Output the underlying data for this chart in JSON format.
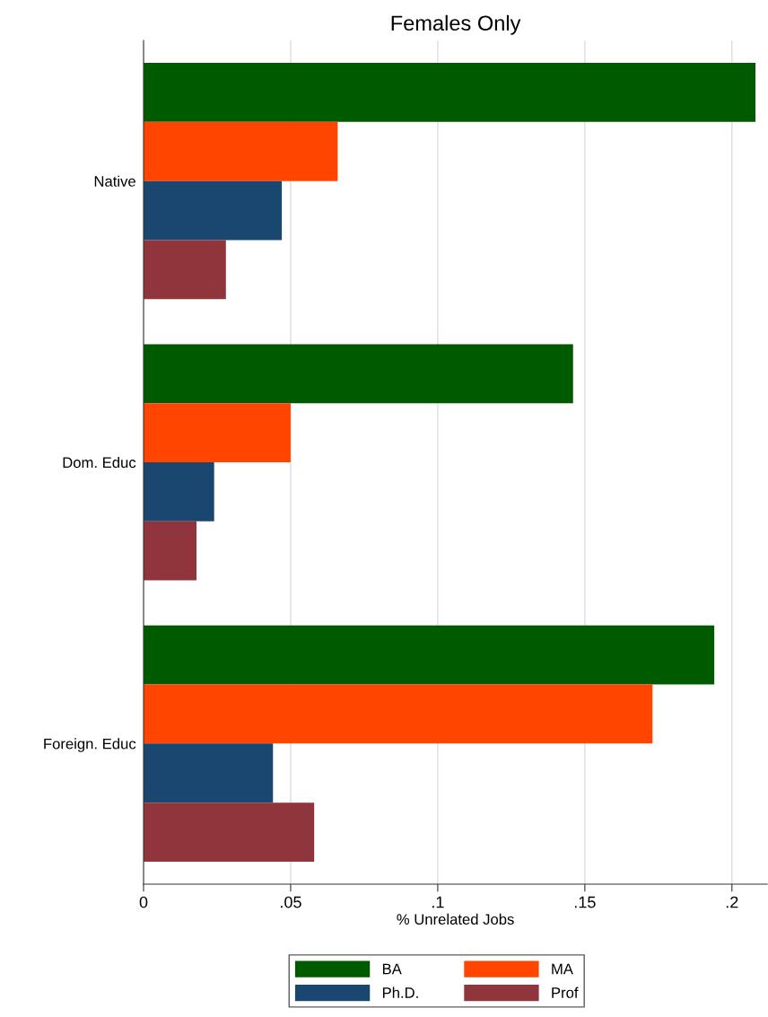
{
  "chart_data": {
    "type": "bar",
    "orientation": "horizontal",
    "title": "Females Only",
    "xlabel": "% Unrelated Jobs",
    "categories": [
      "Native",
      "Dom. Educ",
      "Foreign. Educ"
    ],
    "series": [
      {
        "name": "BA",
        "color": "#005a00",
        "values": [
          0.208,
          0.146,
          0.194
        ]
      },
      {
        "name": "MA",
        "color": "#ff4500",
        "values": [
          0.066,
          0.05,
          0.173
        ]
      },
      {
        "name": "Ph.D.",
        "color": "#1a476f",
        "values": [
          0.047,
          0.024,
          0.044
        ]
      },
      {
        "name": "Prof",
        "color": "#90353b",
        "values": [
          0.028,
          0.018,
          0.058
        ]
      }
    ],
    "xlim": [
      0,
      0.212
    ],
    "xticks": [
      {
        "value": 0,
        "label": "0"
      },
      {
        "value": 0.05,
        "label": ".05"
      },
      {
        "value": 0.1,
        "label": ".1"
      },
      {
        "value": 0.15,
        "label": ".15"
      },
      {
        "value": 0.2,
        "label": ".2"
      }
    ],
    "grid": "x",
    "legend": "bottom"
  }
}
